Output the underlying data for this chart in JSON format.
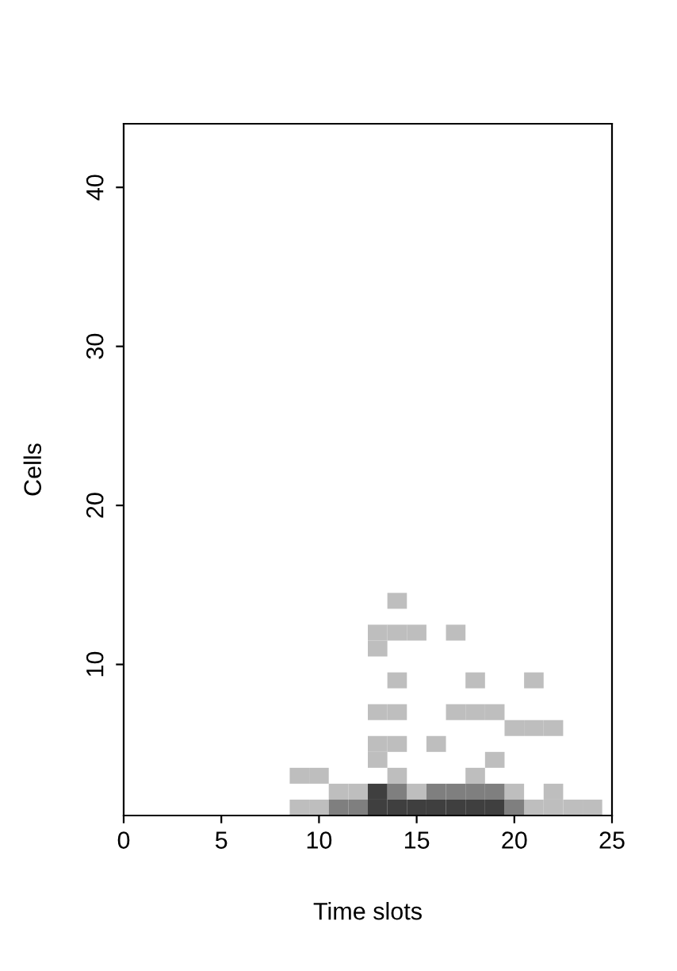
{
  "chart_data": {
    "type": "scatter",
    "xlabel": "Time slots",
    "ylabel": "Cells",
    "xlim": [
      0,
      25
    ],
    "ylim": [
      0.5,
      44
    ],
    "xticks": [
      0,
      5,
      10,
      15,
      20,
      25
    ],
    "yticks": [
      10,
      20,
      30,
      40
    ],
    "marker": "square",
    "grid": false,
    "series": [
      {
        "color": "#bebebe",
        "x": [
          9,
          10,
          21,
          22,
          23,
          24,
          11,
          12,
          15,
          20,
          22,
          9,
          10,
          14,
          18,
          13,
          19,
          13,
          14,
          16,
          20,
          21,
          22,
          13,
          14,
          17,
          18,
          19,
          14,
          18,
          21,
          13,
          13,
          14,
          15,
          17,
          14
        ],
        "values": [
          1,
          1,
          1,
          1,
          1,
          1,
          2,
          2,
          2,
          2,
          2,
          3,
          3,
          3,
          3,
          4,
          4,
          5,
          5,
          5,
          6,
          6,
          6,
          7,
          7,
          7,
          7,
          7,
          9,
          9,
          9,
          11,
          12,
          12,
          12,
          12,
          14
        ]
      },
      {
        "color": "#7f7f7f",
        "x": [
          11,
          12,
          20,
          14,
          16,
          17,
          18,
          19
        ],
        "values": [
          1,
          1,
          1,
          2,
          2,
          2,
          2,
          2
        ]
      },
      {
        "color": "#3f3f3f",
        "x": [
          13,
          14,
          15,
          16,
          17,
          18,
          19,
          13
        ],
        "values": [
          1,
          1,
          1,
          1,
          1,
          1,
          1,
          2
        ]
      }
    ]
  }
}
